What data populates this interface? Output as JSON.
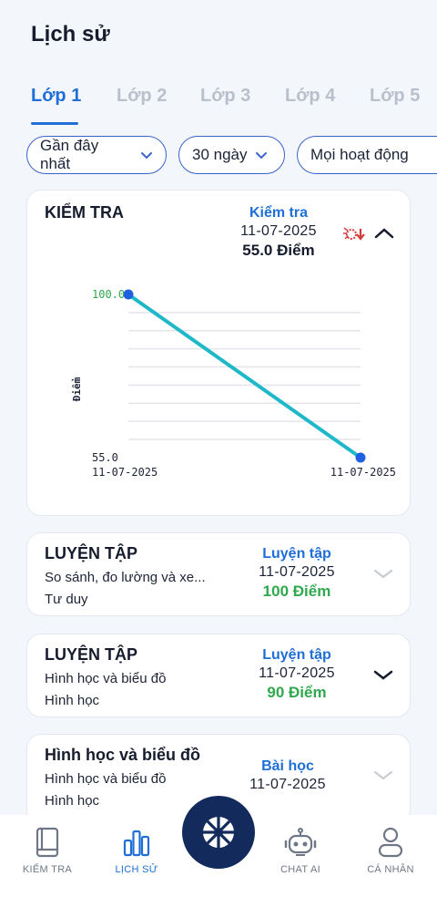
{
  "page": {
    "title": "Lịch sử"
  },
  "tabs": [
    {
      "label": "Lớp 1",
      "active": true
    },
    {
      "label": "Lớp 2",
      "active": false
    },
    {
      "label": "Lớp 3",
      "active": false
    },
    {
      "label": "Lớp 4",
      "active": false
    },
    {
      "label": "Lớp 5",
      "active": false
    }
  ],
  "filters": {
    "sort": "Gần đây nhất",
    "range": "30 ngày",
    "activity": "Mọi hoạt động"
  },
  "test_card": {
    "title": "KIỂM TRA",
    "type": "Kiểm tra",
    "date": "11-07-2025",
    "score": "55.0 Điểm",
    "icon": "score-down-icon"
  },
  "chart_data": {
    "type": "line",
    "x": [
      "11-07-2025",
      "11-07-2025"
    ],
    "values": [
      100.0,
      55.0
    ],
    "y_tick_labels": [
      "100.0",
      "55.0"
    ],
    "ylabel": "Điểm",
    "ylim": [
      55,
      100
    ],
    "grid": true,
    "line_color": "#1fb8c9",
    "point_color": "#1f5fe0"
  },
  "history": [
    {
      "title": "LUYỆN TẬP",
      "line1": "So sánh, đo lường và xe...",
      "line2": "Tư duy",
      "type": "Luyện tập",
      "date": "11-07-2025",
      "score": "100 Điểm",
      "expand": "chevron-down-light"
    },
    {
      "title": "LUYỆN TẬP",
      "line1": "Hình học và biểu đồ",
      "line2": "Hình học",
      "type": "Luyện tập",
      "date": "11-07-2025",
      "score": "90 Điểm",
      "expand": "chevron-down-dark"
    },
    {
      "title": "Hình học và biểu đồ",
      "line1": "Hình học và biểu đồ",
      "line2": "Hình học",
      "type": "Bài học",
      "date": "11-07-2025",
      "score": "",
      "expand": "chevron-down-light"
    }
  ],
  "nav": [
    {
      "label": "KIỂM TRA",
      "icon": "book-icon"
    },
    {
      "label": "LỊCH SỬ",
      "icon": "bar-chart-icon",
      "active": true
    },
    {
      "label": "CHAT AI",
      "icon": "robot-icon"
    },
    {
      "label": "CÁ NHÂN",
      "icon": "user-icon"
    }
  ],
  "colors": {
    "accent": "#1f6fd6",
    "success": "#2fa84f",
    "navy": "#132a5c"
  }
}
